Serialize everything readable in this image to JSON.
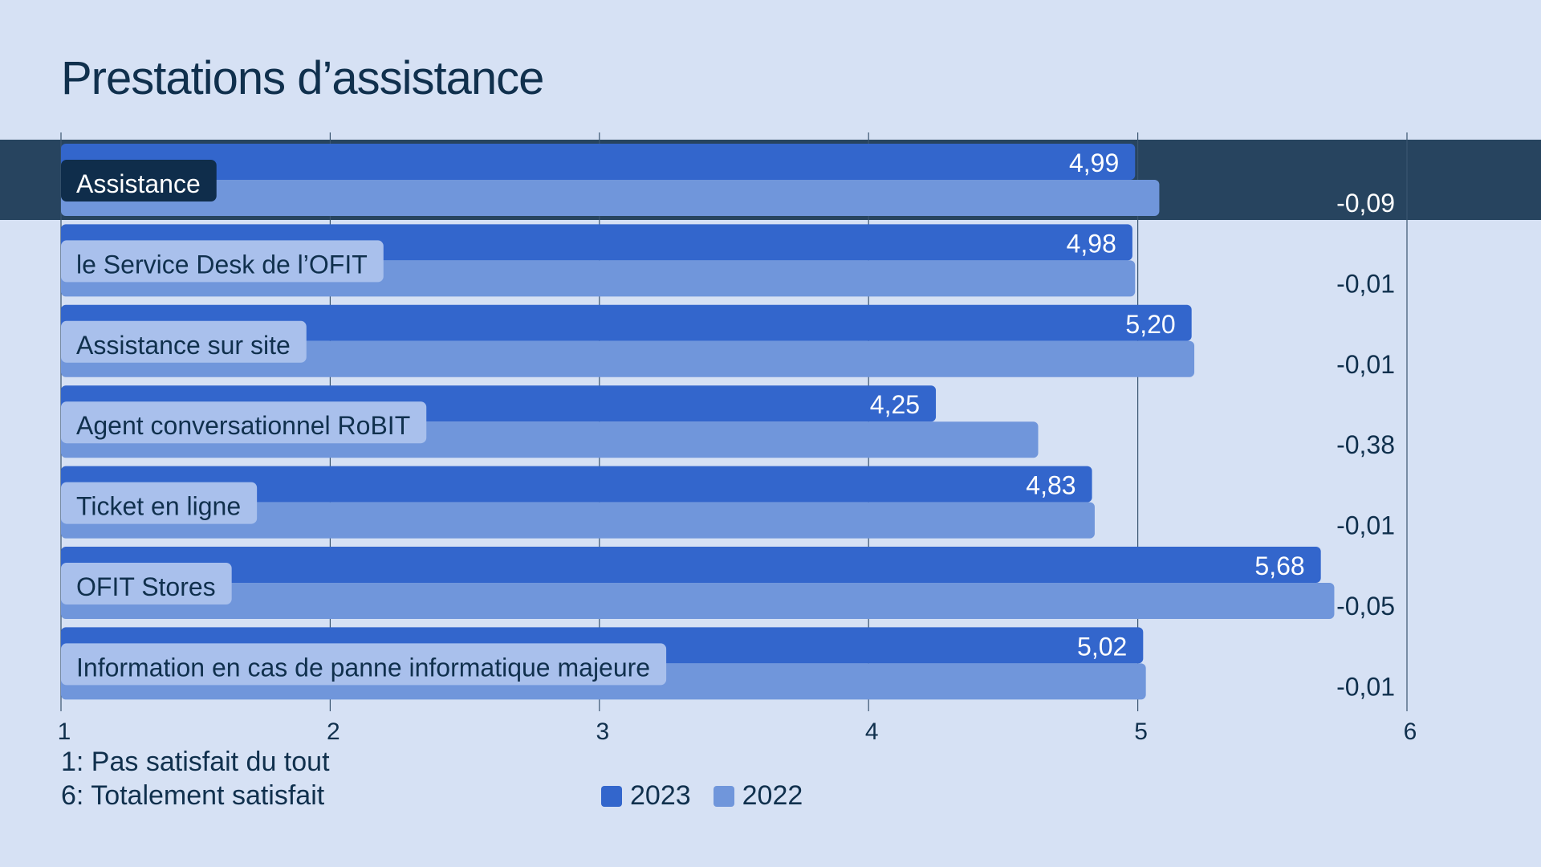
{
  "chart_data": {
    "type": "bar",
    "orientation": "horizontal",
    "title": "Prestations d’assistance",
    "categories": [
      "Assistance",
      "le Service Desk de l’OFIT",
      "Assistance sur site",
      "Agent conversationnel RoBIT",
      "Ticket en ligne",
      "OFIT Stores",
      "Information en cas de panne informatique majeure"
    ],
    "series": [
      {
        "name": "2023",
        "color": "#3366cc",
        "values": [
          4.99,
          4.98,
          5.2,
          4.25,
          4.83,
          5.68,
          5.02
        ],
        "labels": [
          "4,99",
          "4,98",
          "5,20",
          "4,25",
          "4,83",
          "5,68",
          "5,02"
        ]
      },
      {
        "name": "2022",
        "color": "#7096db",
        "values": [
          5.08,
          4.99,
          5.21,
          4.63,
          4.84,
          5.73,
          5.03
        ]
      }
    ],
    "differences": [
      "-0,09",
      "-0,01",
      "-0,01",
      "-0,38",
      "-0,01",
      "-0,05",
      "-0,01"
    ],
    "highlighted_category": "Assistance",
    "xlim": [
      1,
      6
    ],
    "xticks": [
      "1",
      "2",
      "3",
      "4",
      "5",
      "6"
    ],
    "grid": true,
    "legend_position": "bottom",
    "notes": [
      "1: Pas satisfait du tout",
      "6: Totalement satisfait"
    ]
  },
  "colors": {
    "background": "#d6e1f4",
    "highlight_band": "#27445f",
    "label_pill": "#a9c0ec",
    "label_pill_active": "#0f2d4b",
    "text": "#10304d"
  }
}
